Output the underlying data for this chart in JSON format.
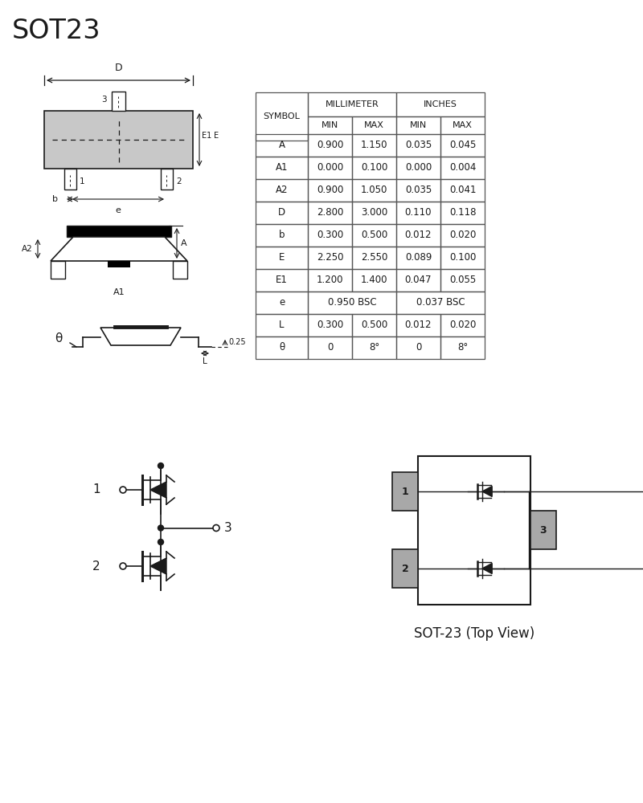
{
  "title": "SOT23",
  "bg_color": "#ffffff",
  "line_color": "#1a1a1a",
  "gray_color": "#aaaaaa",
  "table": {
    "rows": [
      [
        "A",
        "0.900",
        "1.150",
        "0.035",
        "0.045"
      ],
      [
        "A1",
        "0.000",
        "0.100",
        "0.000",
        "0.004"
      ],
      [
        "A2",
        "0.900",
        "1.050",
        "0.035",
        "0.041"
      ],
      [
        "D",
        "2.800",
        "3.000",
        "0.110",
        "0.118"
      ],
      [
        "b",
        "0.300",
        "0.500",
        "0.012",
        "0.020"
      ],
      [
        "E",
        "2.250",
        "2.550",
        "0.089",
        "0.100"
      ],
      [
        "E1",
        "1.200",
        "1.400",
        "0.047",
        "0.055"
      ],
      [
        "e",
        "0.950 BSC",
        "",
        "0.037 BSC",
        ""
      ],
      [
        "L",
        "0.300",
        "0.500",
        "0.012",
        "0.020"
      ],
      [
        "θ",
        "0",
        "8°",
        "0",
        "8°"
      ]
    ]
  }
}
